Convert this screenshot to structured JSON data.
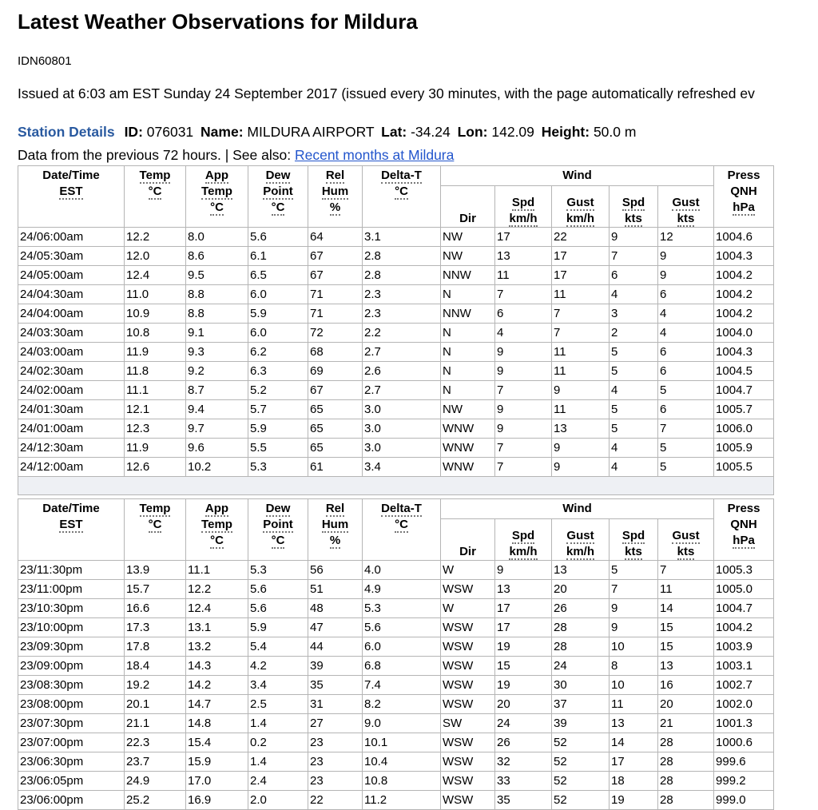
{
  "header": {
    "title": "Latest Weather Observations for Mildura",
    "product_id": "IDN60801",
    "issued": "Issued at 6:03 am EST Sunday 24 September 2017 (issued every 30 minutes, with the page automatically refreshed ev"
  },
  "station": {
    "heading": "Station Details",
    "fields": [
      {
        "label": "ID:",
        "value": "076031"
      },
      {
        "label": "Name:",
        "value": "MILDURA AIRPORT"
      },
      {
        "label": "Lat:",
        "value": "-34.24"
      },
      {
        "label": "Lon:",
        "value": "142.09"
      },
      {
        "label": "Height:",
        "value": "50.0 m"
      }
    ]
  },
  "note": {
    "text": "Data from the previous 72 hours. | See also:",
    "link": "Recent months at Mildura"
  },
  "columns": [
    [
      "Date/Time",
      "EST"
    ],
    [
      "Temp",
      "°C"
    ],
    [
      "App",
      "Temp",
      "°C"
    ],
    [
      "Dew",
      "Point",
      "°C"
    ],
    [
      "Rel",
      "Hum",
      "%"
    ],
    [
      "Delta-T",
      "°C"
    ],
    [
      "Dir"
    ],
    [
      "Spd",
      "km/h"
    ],
    [
      "Gust",
      "km/h"
    ],
    [
      "Spd",
      "kts"
    ],
    [
      "Gust",
      "kts"
    ],
    [
      "Press",
      "QNH",
      "hPa"
    ]
  ],
  "wind_group": "Wind",
  "tables": [
    {
      "rows": [
        [
          "24/06:00am",
          "12.2",
          "8.0",
          "5.6",
          "64",
          "3.1",
          "NW",
          "17",
          "22",
          "9",
          "12",
          "1004.6"
        ],
        [
          "24/05:30am",
          "12.0",
          "8.6",
          "6.1",
          "67",
          "2.8",
          "NW",
          "13",
          "17",
          "7",
          "9",
          "1004.3"
        ],
        [
          "24/05:00am",
          "12.4",
          "9.5",
          "6.5",
          "67",
          "2.8",
          "NNW",
          "11",
          "17",
          "6",
          "9",
          "1004.2"
        ],
        [
          "24/04:30am",
          "11.0",
          "8.8",
          "6.0",
          "71",
          "2.3",
          "N",
          "7",
          "11",
          "4",
          "6",
          "1004.2"
        ],
        [
          "24/04:00am",
          "10.9",
          "8.8",
          "5.9",
          "71",
          "2.3",
          "NNW",
          "6",
          "7",
          "3",
          "4",
          "1004.2"
        ],
        [
          "24/03:30am",
          "10.8",
          "9.1",
          "6.0",
          "72",
          "2.2",
          "N",
          "4",
          "7",
          "2",
          "4",
          "1004.0"
        ],
        [
          "24/03:00am",
          "11.9",
          "9.3",
          "6.2",
          "68",
          "2.7",
          "N",
          "9",
          "11",
          "5",
          "6",
          "1004.3"
        ],
        [
          "24/02:30am",
          "11.8",
          "9.2",
          "6.3",
          "69",
          "2.6",
          "N",
          "9",
          "11",
          "5",
          "6",
          "1004.5"
        ],
        [
          "24/02:00am",
          "11.1",
          "8.7",
          "5.2",
          "67",
          "2.7",
          "N",
          "7",
          "9",
          "4",
          "5",
          "1004.7"
        ],
        [
          "24/01:30am",
          "12.1",
          "9.4",
          "5.7",
          "65",
          "3.0",
          "NW",
          "9",
          "11",
          "5",
          "6",
          "1005.7"
        ],
        [
          "24/01:00am",
          "12.3",
          "9.7",
          "5.9",
          "65",
          "3.0",
          "WNW",
          "9",
          "13",
          "5",
          "7",
          "1006.0"
        ],
        [
          "24/12:30am",
          "11.9",
          "9.6",
          "5.5",
          "65",
          "3.0",
          "WNW",
          "7",
          "9",
          "4",
          "5",
          "1005.9"
        ],
        [
          "24/12:00am",
          "12.6",
          "10.2",
          "5.3",
          "61",
          "3.4",
          "WNW",
          "7",
          "9",
          "4",
          "5",
          "1005.5"
        ]
      ]
    },
    {
      "rows": [
        [
          "23/11:30pm",
          "13.9",
          "11.1",
          "5.3",
          "56",
          "4.0",
          "W",
          "9",
          "13",
          "5",
          "7",
          "1005.3"
        ],
        [
          "23/11:00pm",
          "15.7",
          "12.2",
          "5.6",
          "51",
          "4.9",
          "WSW",
          "13",
          "20",
          "7",
          "11",
          "1005.0"
        ],
        [
          "23/10:30pm",
          "16.6",
          "12.4",
          "5.6",
          "48",
          "5.3",
          "W",
          "17",
          "26",
          "9",
          "14",
          "1004.7"
        ],
        [
          "23/10:00pm",
          "17.3",
          "13.1",
          "5.9",
          "47",
          "5.6",
          "WSW",
          "17",
          "28",
          "9",
          "15",
          "1004.2"
        ],
        [
          "23/09:30pm",
          "17.8",
          "13.2",
          "5.4",
          "44",
          "6.0",
          "WSW",
          "19",
          "28",
          "10",
          "15",
          "1003.9"
        ],
        [
          "23/09:00pm",
          "18.4",
          "14.3",
          "4.2",
          "39",
          "6.8",
          "WSW",
          "15",
          "24",
          "8",
          "13",
          "1003.1"
        ],
        [
          "23/08:30pm",
          "19.2",
          "14.2",
          "3.4",
          "35",
          "7.4",
          "WSW",
          "19",
          "30",
          "10",
          "16",
          "1002.7"
        ],
        [
          "23/08:00pm",
          "20.1",
          "14.7",
          "2.5",
          "31",
          "8.2",
          "WSW",
          "20",
          "37",
          "11",
          "20",
          "1002.0"
        ],
        [
          "23/07:30pm",
          "21.1",
          "14.8",
          "1.4",
          "27",
          "9.0",
          "SW",
          "24",
          "39",
          "13",
          "21",
          "1001.3"
        ],
        [
          "23/07:00pm",
          "22.3",
          "15.4",
          "0.2",
          "23",
          "10.1",
          "WSW",
          "26",
          "52",
          "14",
          "28",
          "1000.6"
        ],
        [
          "23/06:30pm",
          "23.7",
          "15.9",
          "1.4",
          "23",
          "10.4",
          "WSW",
          "32",
          "52",
          "17",
          "28",
          "999.6"
        ],
        [
          "23/06:05pm",
          "24.9",
          "17.0",
          "2.4",
          "23",
          "10.8",
          "WSW",
          "33",
          "52",
          "18",
          "28",
          "999.2"
        ],
        [
          "23/06:00pm",
          "25.2",
          "16.9",
          "2.0",
          "22",
          "11.2",
          "WSW",
          "35",
          "52",
          "19",
          "28",
          "999.0"
        ]
      ]
    }
  ]
}
